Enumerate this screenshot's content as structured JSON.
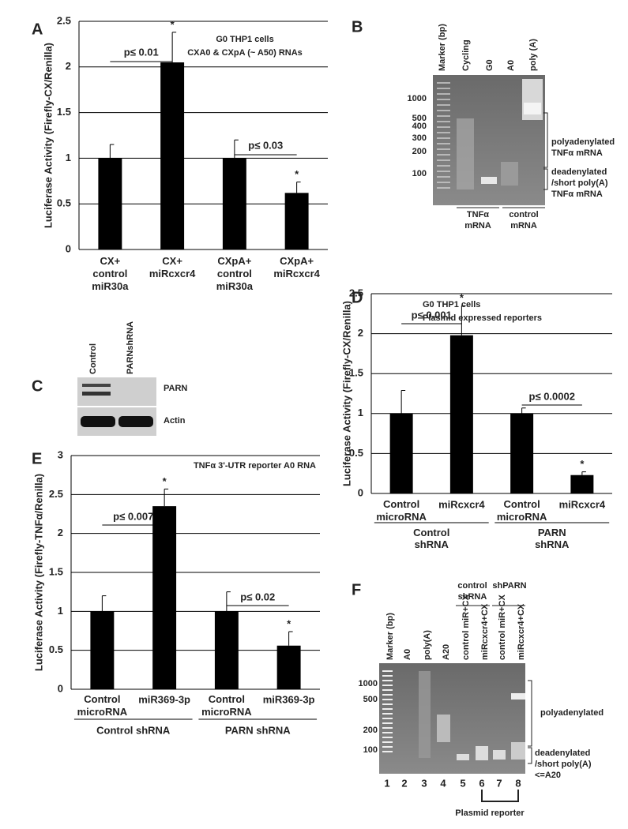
{
  "chart_data": [
    {
      "type": "bar",
      "panel": "A",
      "ylabel": "Luciferase Activity (Firefly-CX/Renilla)",
      "categories": [
        "CX+\ncontrol\nmiR30a",
        "CX+\nmiRcxcr4",
        "CXpA+\ncontrol\nmiR30a",
        "CXpA+\nmiRcxcr4"
      ],
      "values": [
        1,
        2.05,
        1,
        0.62
      ],
      "errors": [
        0.15,
        0.33,
        0.2,
        0.12
      ],
      "significance": [
        null,
        "*",
        null,
        "*"
      ],
      "pvalues": [
        "p≤ 0.01",
        "p≤ 0.03"
      ],
      "notes": [
        "G0 THP1 cells",
        "CXA0 & CXpA (~ A50) RNAs"
      ],
      "color": "#000000",
      "ylim": [
        0,
        2.5
      ],
      "yticks": [
        0,
        0.5,
        1,
        1.5,
        2,
        2.5
      ],
      "grid": true
    },
    {
      "type": "bar",
      "panel": "D",
      "ylabel": "Luciferase Activity (Firefly-CX/Renilla)",
      "categories": [
        "Control\nmicroRNA",
        "miRcxcr4",
        "Control\nmicroRNA",
        "miRcxcr4"
      ],
      "groups": [
        "Control\nshRNA",
        "PARN\nshRNA"
      ],
      "values": [
        1,
        1.98,
        1,
        0.23
      ],
      "errors": [
        0.29,
        0.37,
        0.07,
        0.04
      ],
      "significance": [
        null,
        "*",
        null,
        "*"
      ],
      "pvalues": [
        "p≤ 0.001",
        "p≤ 0.0002"
      ],
      "notes": [
        "G0 THP1 cells",
        "Plasmid expressed reporters"
      ],
      "color": "#000000",
      "ylim": [
        0,
        2.5
      ],
      "yticks": [
        0,
        0.5,
        1,
        1.5,
        2,
        2.5
      ],
      "grid": true
    },
    {
      "type": "bar",
      "panel": "E",
      "ylabel": "Luciferase Activity (Firefly-TNFα/Renilla)",
      "categories": [
        "Control\nmicroRNA",
        "miR369-3p",
        "Control\nmicroRNA",
        "miR369-3p"
      ],
      "groups": [
        "Control shRNA",
        "PARN shRNA"
      ],
      "values": [
        1,
        2.35,
        1,
        0.56
      ],
      "errors": [
        0.2,
        0.22,
        0.25,
        0.18
      ],
      "significance": [
        null,
        "*",
        null,
        "*"
      ],
      "pvalues": [
        "p≤ 0.007",
        "p≤ 0.02"
      ],
      "notes": [
        "TNFα 3'-UTR reporter A0 RNA"
      ],
      "color": "#000000",
      "ylim": [
        0,
        3
      ],
      "yticks": [
        0,
        0.5,
        1,
        1.5,
        2,
        2.5,
        3
      ],
      "grid": true
    }
  ],
  "gels": {
    "B": {
      "panel": "B",
      "lanes": [
        "Marker (bp)",
        "Cycling",
        "G0",
        "A0",
        "poly (A)"
      ],
      "sizes": [
        "1000",
        "500",
        "400",
        "300",
        "200",
        "100"
      ],
      "right_labels": [
        "polyadenylated\nTNFα mRNA",
        "deadenylated\n/short poly(A)\nTNFα mRNA"
      ],
      "groups": [
        "TNFα\nmRNA",
        "control\nmRNA"
      ]
    },
    "C": {
      "panel": "C",
      "lanes": [
        "Control",
        "PARNshRNA"
      ],
      "blots": [
        "PARN",
        "Actin"
      ]
    },
    "F": {
      "panel": "F",
      "lanes": [
        "Marker (bp)",
        "A0",
        "poly(A)",
        "A20",
        "control miR+CX",
        "miRcxcr4+CX",
        "control miR+CX",
        "miRcxcr4+CX"
      ],
      "groups": [
        "control\nshRNA",
        "shPARN"
      ],
      "sizes": [
        "1000",
        "500",
        "200",
        "100"
      ],
      "right_labels": [
        "polyadenylated",
        "deadenylated\n/short poly(A)\n<=A20"
      ],
      "lane_numbers": [
        "1",
        "2",
        "3",
        "4",
        "5",
        "6",
        "7",
        "8"
      ],
      "bracket": "Plasmid reporter"
    }
  }
}
